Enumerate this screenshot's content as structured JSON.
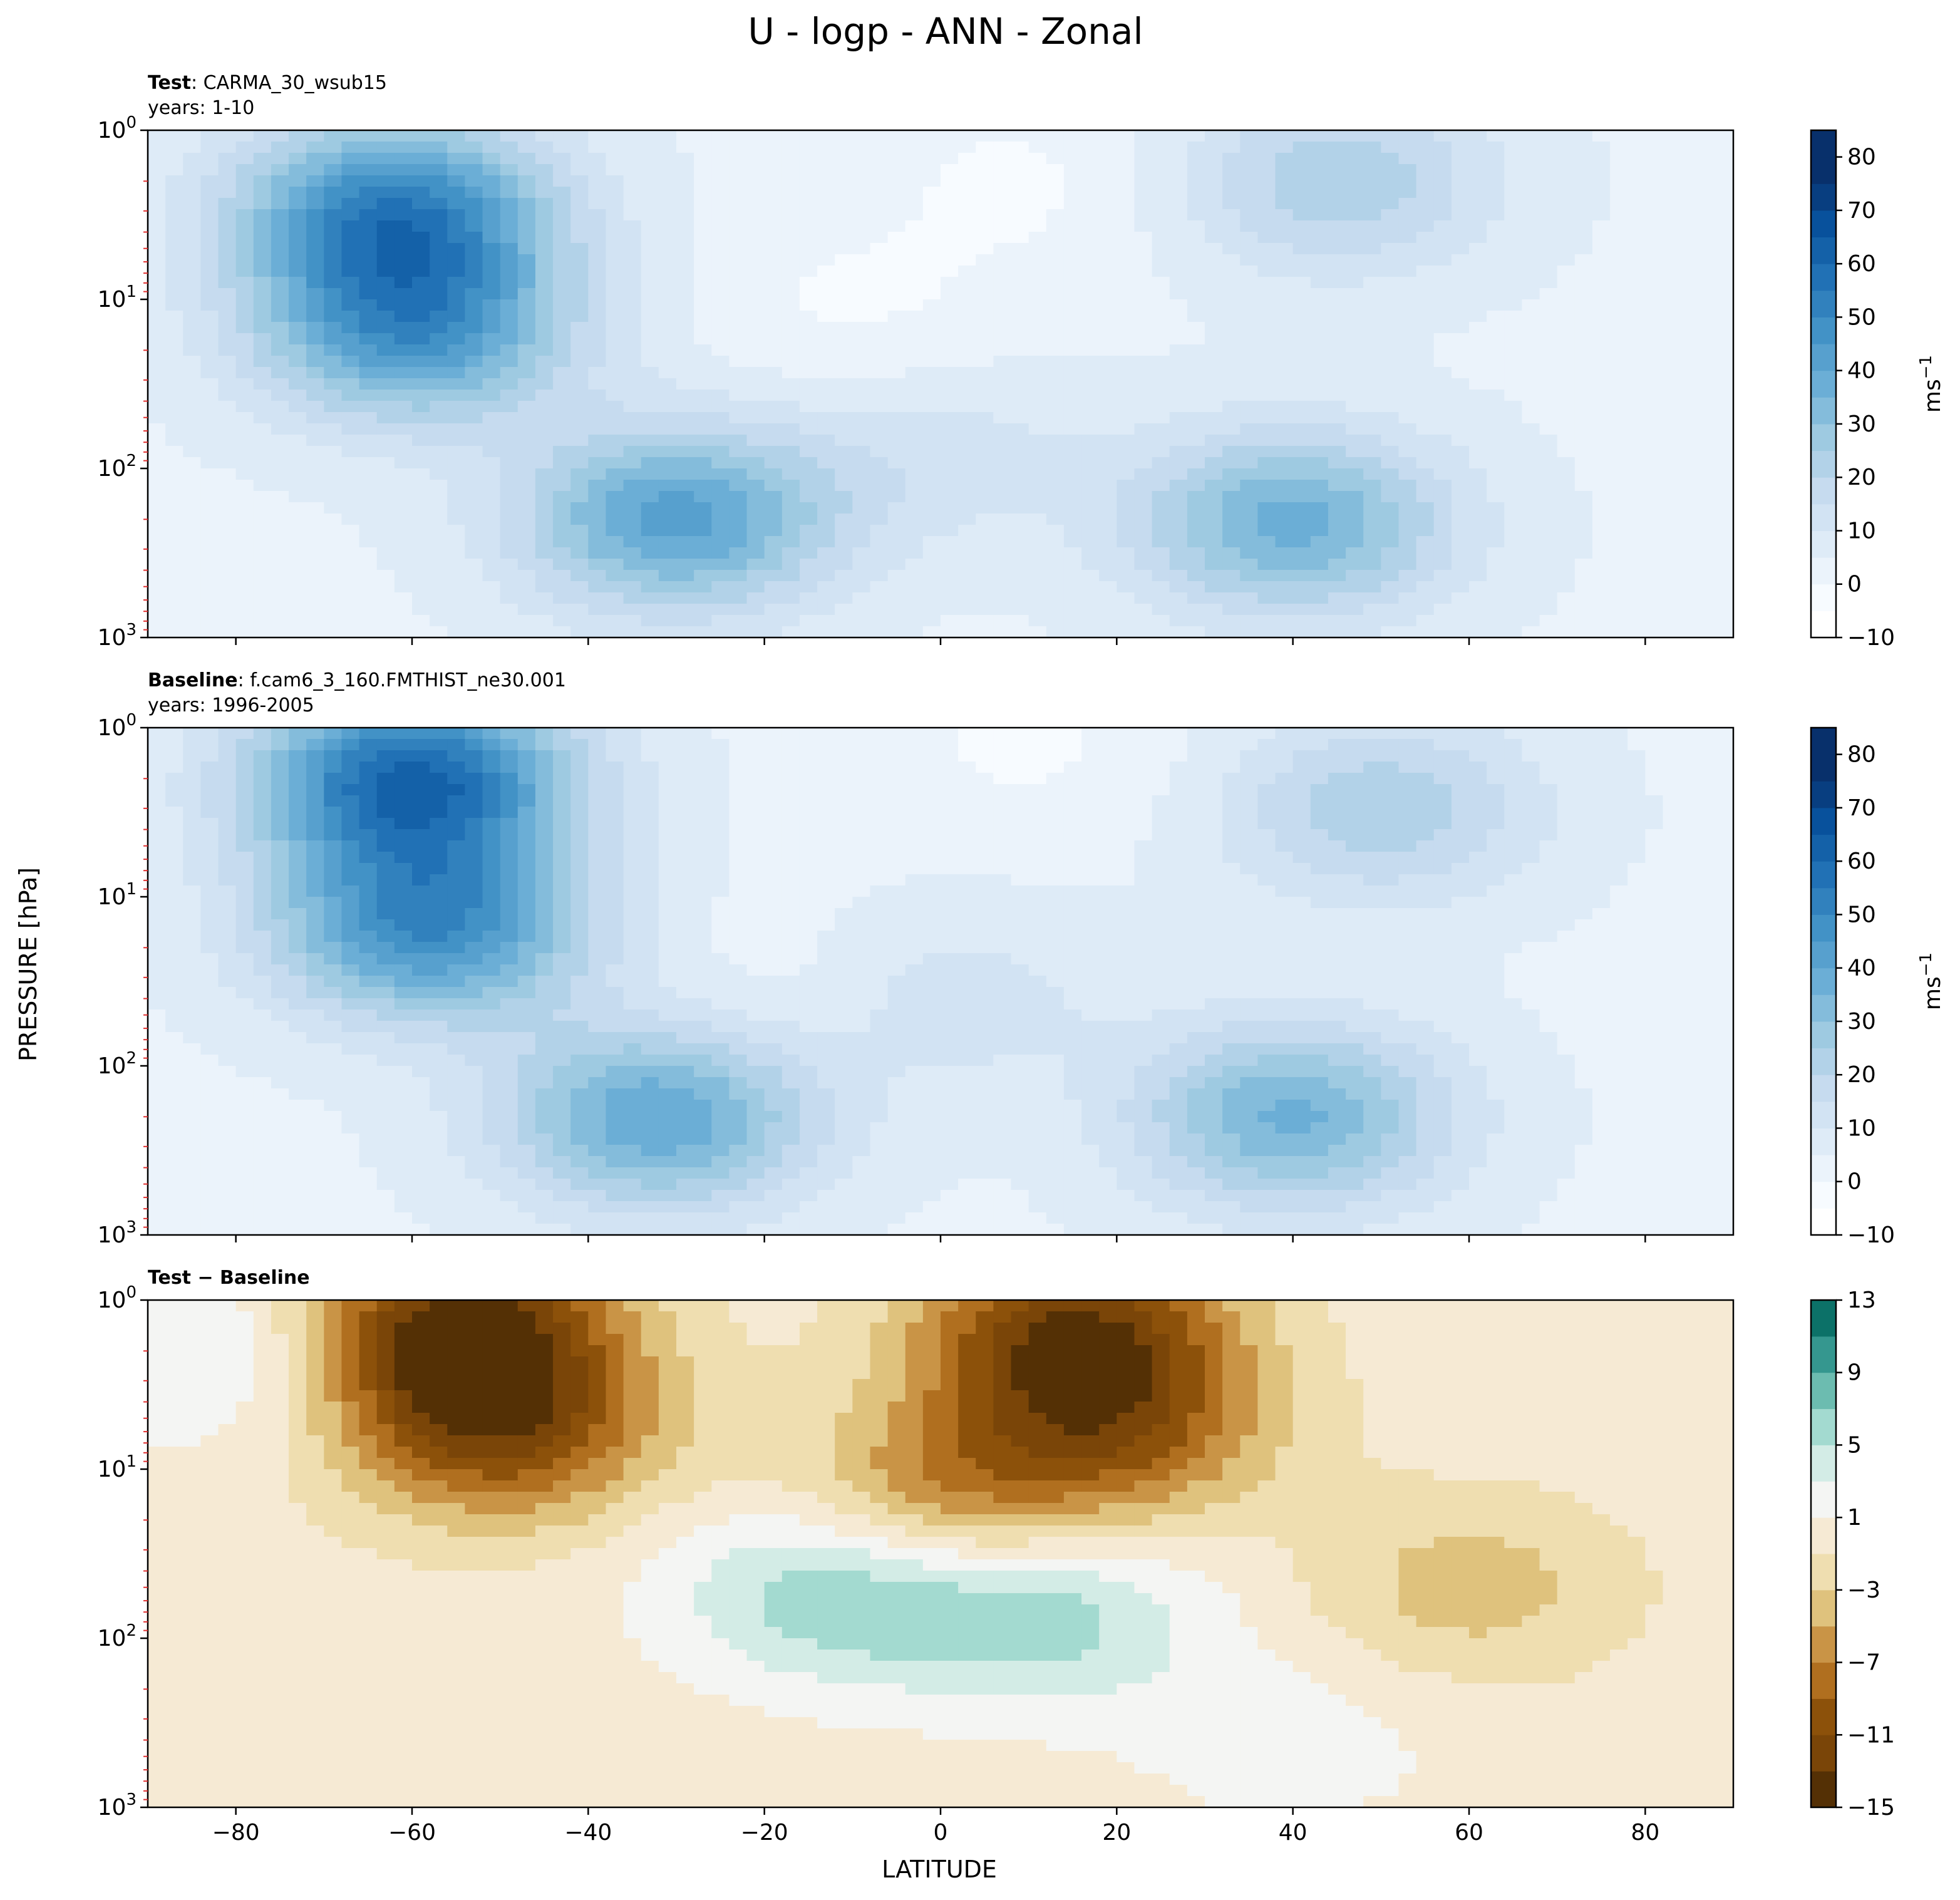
{
  "title": "U - logp - ANN - Zonal",
  "shared_ylabel": "PRESSURE [hPa]",
  "shared_xlabel": "LATITUDE",
  "chart_data": [
    {
      "type": "heatmap",
      "panel_id": "test",
      "label_bold": "Test",
      "label_rest": ": CARMA_30_wsub15",
      "subtitle": "years: 1-10",
      "x_range": [
        -90,
        90
      ],
      "y_range": [
        1000,
        1
      ],
      "y_scale": "log",
      "y_ticks": [
        {
          "m": "10",
          "e": "0",
          "v": 1
        },
        {
          "m": "10",
          "e": "1",
          "v": 10
        },
        {
          "m": "10",
          "e": "2",
          "v": 100
        },
        {
          "m": "10",
          "e": "3",
          "v": 1000
        }
      ],
      "x_ticks": [],
      "colorbar": {
        "label_base": "ms",
        "label_exp": "−1",
        "levels": [
          -10,
          -5,
          0,
          5,
          10,
          15,
          20,
          25,
          30,
          35,
          40,
          45,
          50,
          55,
          60,
          65,
          70,
          75,
          80,
          85
        ],
        "tick_labels": [
          "−10",
          "0",
          "10",
          "20",
          "30",
          "40",
          "50",
          "60",
          "70",
          "80"
        ],
        "tick_values": [
          -10,
          0,
          10,
          20,
          30,
          40,
          50,
          60,
          70,
          80
        ],
        "colors": [
          "#ffffff",
          "#f7fbff",
          "#ebf3fb",
          "#deebf7",
          "#d2e3f3",
          "#c6dbef",
          "#b2d2e8",
          "#9ecae1",
          "#84bcdb",
          "#6baed6",
          "#57a0ce",
          "#4292c6",
          "#3181bd",
          "#2171b5",
          "#1461a8",
          "#08519c",
          "#083e80",
          "#08306b",
          "#08306b"
        ]
      },
      "features": [
        {
          "lat": -62,
          "p": 3,
          "value": 46,
          "name": "upper-stratosphere-southern-jet"
        },
        {
          "lat": -60,
          "p": 15,
          "value": 40,
          "name": "mid-stratosphere-southern-jet"
        },
        {
          "lat": -30,
          "p": 200,
          "value": 38,
          "name": "southern-subtropical-jet"
        },
        {
          "lat": 40,
          "p": 210,
          "value": 33,
          "name": "northern-subtropical-jet"
        },
        {
          "lat": 45,
          "p": 2,
          "value": 20,
          "name": "northern-stratosphere-jet"
        },
        {
          "lat": 0,
          "p": 80,
          "value": 8,
          "name": "tropical-westerly"
        },
        {
          "lat": -10,
          "p": 12,
          "value": -5,
          "name": "tropical-easterly-a"
        },
        {
          "lat": 10,
          "p": 2,
          "value": -5,
          "name": "tropical-easterly-b"
        }
      ]
    },
    {
      "type": "heatmap",
      "panel_id": "baseline",
      "label_bold": "Baseline",
      "label_rest": ": f.cam6_3_160.FMTHIST_ne30.001",
      "subtitle": "years: 1996-2005",
      "x_range": [
        -90,
        90
      ],
      "y_range": [
        1000,
        1
      ],
      "y_scale": "log",
      "y_ticks": [
        {
          "m": "10",
          "e": "0",
          "v": 1
        },
        {
          "m": "10",
          "e": "1",
          "v": 10
        },
        {
          "m": "10",
          "e": "2",
          "v": 100
        },
        {
          "m": "10",
          "e": "3",
          "v": 1000
        }
      ],
      "x_ticks": [],
      "colorbar": {
        "label_base": "ms",
        "label_exp": "−1",
        "levels": [
          -10,
          -5,
          0,
          5,
          10,
          15,
          20,
          25,
          30,
          35,
          40,
          45,
          50,
          55,
          60,
          65,
          70,
          75,
          80,
          85
        ],
        "tick_labels": [
          "−10",
          "0",
          "10",
          "20",
          "30",
          "40",
          "50",
          "60",
          "70",
          "80"
        ],
        "tick_values": [
          -10,
          0,
          10,
          20,
          30,
          40,
          50,
          60,
          70,
          80
        ],
        "colors": [
          "#ffffff",
          "#f7fbff",
          "#ebf3fb",
          "#deebf7",
          "#d2e3f3",
          "#c6dbef",
          "#b2d2e8",
          "#9ecae1",
          "#84bcdb",
          "#6baed6",
          "#57a0ce",
          "#4292c6",
          "#3181bd",
          "#2171b5",
          "#1461a8",
          "#08519c",
          "#083e80",
          "#08306b",
          "#08306b"
        ]
      },
      "features": [
        {
          "lat": -60,
          "p": 2,
          "value": 56,
          "name": "upper-stratosphere-southern-jet"
        },
        {
          "lat": -58,
          "p": 15,
          "value": 44,
          "name": "mid-stratosphere-southern-jet"
        },
        {
          "lat": -32,
          "p": 200,
          "value": 36,
          "name": "southern-subtropical-jet"
        },
        {
          "lat": 40,
          "p": 200,
          "value": 32,
          "name": "northern-subtropical-jet"
        },
        {
          "lat": 50,
          "p": 3,
          "value": 20,
          "name": "northern-stratosphere-jet"
        },
        {
          "lat": 0,
          "p": 40,
          "value": 10,
          "name": "tropical-westerly"
        },
        {
          "lat": -16,
          "p": 40,
          "value": -5,
          "name": "tropical-easterly-a"
        },
        {
          "lat": 10,
          "p": 1.2,
          "value": -5,
          "name": "tropical-easterly-b"
        }
      ]
    },
    {
      "type": "heatmap",
      "panel_id": "diff",
      "label_bold": "Test − Baseline",
      "label_rest": "",
      "subtitle": "",
      "x_range": [
        -90,
        90
      ],
      "y_range": [
        1000,
        1
      ],
      "y_scale": "log",
      "y_ticks": [
        {
          "m": "10",
          "e": "0",
          "v": 1
        },
        {
          "m": "10",
          "e": "1",
          "v": 10
        },
        {
          "m": "10",
          "e": "2",
          "v": 100
        },
        {
          "m": "10",
          "e": "3",
          "v": 1000
        }
      ],
      "x_ticks": [
        -80,
        -60,
        -40,
        -20,
        0,
        20,
        40,
        60,
        80
      ],
      "x_tick_labels": [
        "−80",
        "−60",
        "−40",
        "−20",
        "0",
        "20",
        "40",
        "60",
        "80"
      ],
      "colorbar": {
        "label_base": "",
        "label_exp": "",
        "levels": [
          -15,
          -13,
          -11,
          -9,
          -7,
          -5,
          -3,
          -1,
          1,
          3,
          5,
          7,
          9,
          11,
          13
        ],
        "tick_labels": [
          "−15",
          "−11",
          "−7",
          "−3",
          "1",
          "5",
          "9",
          "13"
        ],
        "tick_values": [
          -15,
          -11,
          -7,
          -3,
          1,
          5,
          9,
          13
        ],
        "colors": [
          "#543005",
          "#7a4508",
          "#8c510a",
          "#b06f1f",
          "#c99446",
          "#dfc27d",
          "#efdeb0",
          "#f6ead4",
          "#f4f5f3",
          "#d3ece6",
          "#a3dad0",
          "#6cbcb0",
          "#35978f",
          "#0c7168",
          "#01463c"
        ]
      },
      "features": [
        {
          "lat": -55,
          "p": 1.5,
          "value": -14,
          "name": "upper-southern-deficit"
        },
        {
          "lat": -50,
          "p": 6,
          "value": -10,
          "name": "mid-southern-deficit"
        },
        {
          "lat": 15,
          "p": 1.5,
          "value": -12,
          "name": "upper-northern-deficit"
        },
        {
          "lat": 20,
          "p": 6,
          "value": -8,
          "name": "mid-northern-deficit"
        },
        {
          "lat": 0,
          "p": 15,
          "value": -7,
          "name": "tropical-deficit"
        },
        {
          "lat": -12,
          "p": 50,
          "value": 7,
          "name": "southern-tropical-surplus"
        },
        {
          "lat": 12,
          "p": 70,
          "value": 6,
          "name": "northern-tropical-surplus"
        },
        {
          "lat": -80,
          "p": 2,
          "value": 4,
          "name": "polar-surplus"
        },
        {
          "lat": 60,
          "p": 50,
          "value": -4,
          "name": "northern-midlat-deficit"
        },
        {
          "lat": 40,
          "p": 400,
          "value": 2,
          "name": "lower-surplus"
        }
      ]
    }
  ]
}
